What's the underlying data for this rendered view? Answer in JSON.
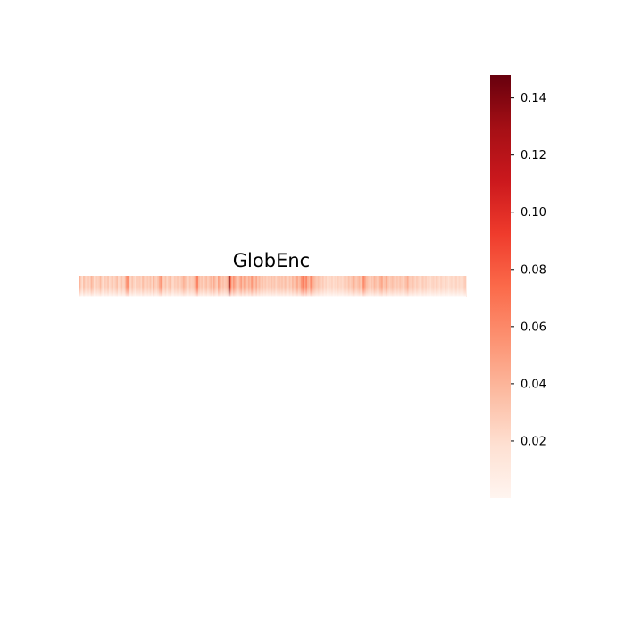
{
  "chart_data": {
    "type": "heatmap",
    "title": "GlobEnc",
    "xlabel": "",
    "ylabel": "",
    "colormap": "Reds",
    "colormap_stops": [
      "#fff5f0",
      "#fee0d2",
      "#fcbba1",
      "#fc9272",
      "#fb6a4a",
      "#ef3b2c",
      "#cb181d",
      "#a50f15",
      "#67000d"
    ],
    "color_range": [
      0.0,
      0.148
    ],
    "colorbar_ticks": [
      0.02,
      0.04,
      0.06,
      0.08,
      0.1,
      0.12,
      0.14
    ],
    "colorbar_tick_labels": [
      "0.02",
      "0.04",
      "0.06",
      "0.08",
      "0.10",
      "0.12",
      "0.14"
    ],
    "grid": false,
    "legend": "colorbar-right",
    "rows": 1,
    "columns": 256,
    "values": [
      [
        0.045,
        0.03,
        0.02,
        0.036,
        0.027,
        0.022,
        0.03,
        0.025,
        0.04,
        0.032,
        0.021,
        0.034,
        0.026,
        0.028,
        0.038,
        0.024,
        0.02,
        0.03,
        0.026,
        0.033,
        0.022,
        0.027,
        0.031,
        0.024,
        0.029,
        0.036,
        0.022,
        0.027,
        0.033,
        0.025,
        0.028,
        0.052,
        0.06,
        0.03,
        0.024,
        0.033,
        0.026,
        0.021,
        0.034,
        0.028,
        0.03,
        0.024,
        0.037,
        0.029,
        0.022,
        0.031,
        0.027,
        0.034,
        0.024,
        0.04,
        0.03,
        0.026,
        0.033,
        0.045,
        0.055,
        0.032,
        0.027,
        0.034,
        0.024,
        0.03,
        0.036,
        0.025,
        0.022,
        0.03,
        0.027,
        0.032,
        0.024,
        0.029,
        0.034,
        0.042,
        0.036,
        0.03,
        0.025,
        0.033,
        0.028,
        0.03,
        0.036,
        0.058,
        0.065,
        0.038,
        0.03,
        0.034,
        0.026,
        0.031,
        0.037,
        0.028,
        0.033,
        0.04,
        0.03,
        0.045,
        0.034,
        0.028,
        0.05,
        0.038,
        0.031,
        0.036,
        0.03,
        0.034,
        0.04,
        0.148,
        0.07,
        0.04,
        0.055,
        0.045,
        0.036,
        0.032,
        0.041,
        0.052,
        0.036,
        0.048,
        0.04,
        0.034,
        0.044,
        0.038,
        0.055,
        0.042,
        0.036,
        0.047,
        0.033,
        0.039,
        0.03,
        0.035,
        0.028,
        0.032,
        0.026,
        0.03,
        0.028,
        0.034,
        0.029,
        0.033,
        0.025,
        0.031,
        0.036,
        0.03,
        0.034,
        0.028,
        0.036,
        0.031,
        0.026,
        0.034,
        0.029,
        0.04,
        0.033,
        0.038,
        0.048,
        0.036,
        0.042,
        0.058,
        0.066,
        0.05,
        0.062,
        0.044,
        0.038,
        0.06,
        0.046,
        0.04,
        0.034,
        0.03,
        0.034,
        0.028,
        0.025,
        0.03,
        0.022,
        0.026,
        0.02,
        0.024,
        0.022,
        0.026,
        0.02,
        0.024,
        0.021,
        0.027,
        0.023,
        0.025,
        0.022,
        0.028,
        0.03,
        0.026,
        0.034,
        0.028,
        0.032,
        0.042,
        0.036,
        0.03,
        0.034,
        0.04,
        0.032,
        0.052,
        0.06,
        0.045,
        0.036,
        0.032,
        0.028,
        0.034,
        0.03,
        0.04,
        0.034,
        0.03,
        0.036,
        0.042,
        0.048,
        0.032,
        0.036,
        0.046,
        0.034,
        0.028,
        0.032,
        0.036,
        0.03,
        0.026,
        0.032,
        0.028,
        0.034,
        0.03,
        0.026,
        0.032,
        0.036,
        0.044,
        0.03,
        0.028,
        0.034,
        0.03,
        0.024,
        0.03,
        0.026,
        0.022,
        0.026,
        0.03,
        0.024,
        0.028,
        0.022,
        0.026,
        0.02,
        0.024,
        0.026,
        0.022,
        0.028,
        0.024,
        0.02,
        0.026,
        0.022,
        0.02,
        0.026,
        0.022,
        0.018,
        0.022,
        0.024,
        0.02,
        0.022,
        0.026,
        0.02,
        0.024,
        0.021,
        0.019,
        0.026,
        0.03
      ]
    ]
  }
}
